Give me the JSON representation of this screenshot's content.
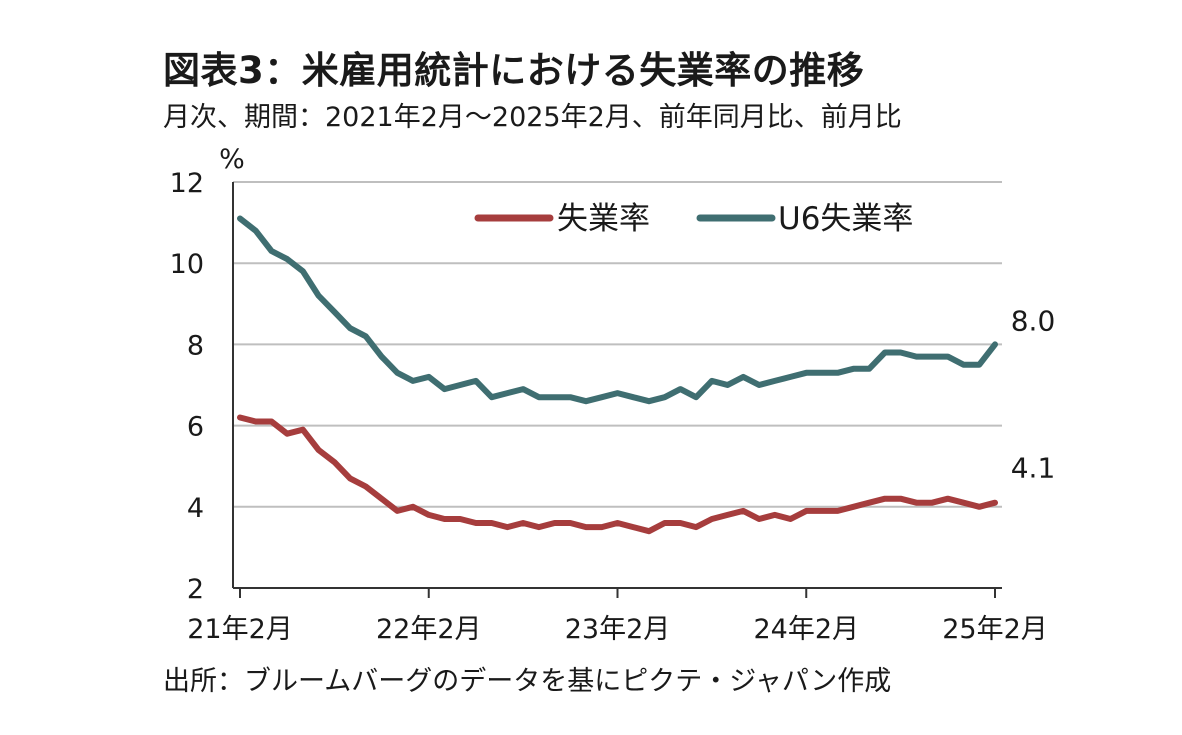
{
  "header": {
    "title": "図表3：米雇用統計における失業率の推移",
    "subtitle": "月次、期間：2021年2月～2025年2月、前年同月比、前月比"
  },
  "footer": {
    "source": "出所：ブルームバーグのデータを基にピクテ・ジャパン作成"
  },
  "colors": {
    "unemployment": "#a63d3d",
    "u6": "#3f6e71",
    "grid": "#bfbfbf",
    "axis": "#333333"
  },
  "chart_data": {
    "type": "line",
    "title": "",
    "xlabel": "",
    "ylabel": "%",
    "ylim": [
      2,
      12
    ],
    "yticks": [
      2,
      4,
      6,
      8,
      10,
      12
    ],
    "xtick_labels": [
      "21年2月",
      "22年2月",
      "23年2月",
      "24年2月",
      "25年2月"
    ],
    "xtick_index": [
      0,
      12,
      24,
      36,
      48
    ],
    "grid": true,
    "legend_position": "top-right",
    "x": [
      "2021-02",
      "2021-03",
      "2021-04",
      "2021-05",
      "2021-06",
      "2021-07",
      "2021-08",
      "2021-09",
      "2021-10",
      "2021-11",
      "2021-12",
      "2022-01",
      "2022-02",
      "2022-03",
      "2022-04",
      "2022-05",
      "2022-06",
      "2022-07",
      "2022-08",
      "2022-09",
      "2022-10",
      "2022-11",
      "2022-12",
      "2023-01",
      "2023-02",
      "2023-03",
      "2023-04",
      "2023-05",
      "2023-06",
      "2023-07",
      "2023-08",
      "2023-09",
      "2023-10",
      "2023-11",
      "2023-12",
      "2024-01",
      "2024-02",
      "2024-03",
      "2024-04",
      "2024-05",
      "2024-06",
      "2024-07",
      "2024-08",
      "2024-09",
      "2024-10",
      "2024-11",
      "2024-12",
      "2025-01",
      "2025-02"
    ],
    "series": [
      {
        "name": "失業率",
        "color": "#a63d3d",
        "end_label": "4.1",
        "values": [
          6.2,
          6.1,
          6.1,
          5.8,
          5.9,
          5.4,
          5.1,
          4.7,
          4.5,
          4.2,
          3.9,
          4.0,
          3.8,
          3.7,
          3.7,
          3.6,
          3.6,
          3.5,
          3.6,
          3.5,
          3.6,
          3.6,
          3.5,
          3.5,
          3.6,
          3.5,
          3.4,
          3.6,
          3.6,
          3.5,
          3.7,
          3.8,
          3.9,
          3.7,
          3.8,
          3.7,
          3.9,
          3.9,
          3.9,
          4.0,
          4.1,
          4.2,
          4.2,
          4.1,
          4.1,
          4.2,
          4.1,
          4.0,
          4.1
        ]
      },
      {
        "name": "U6失業率",
        "color": "#3f6e71",
        "end_label": "8.0",
        "values": [
          11.1,
          10.8,
          10.3,
          10.1,
          9.8,
          9.2,
          8.8,
          8.4,
          8.2,
          7.7,
          7.3,
          7.1,
          7.2,
          6.9,
          7.0,
          7.1,
          6.7,
          6.8,
          6.9,
          6.7,
          6.7,
          6.7,
          6.6,
          6.7,
          6.8,
          6.7,
          6.6,
          6.7,
          6.9,
          6.7,
          7.1,
          7.0,
          7.2,
          7.0,
          7.1,
          7.2,
          7.3,
          7.3,
          7.3,
          7.4,
          7.4,
          7.8,
          7.8,
          7.7,
          7.7,
          7.7,
          7.5,
          7.5,
          8.0
        ]
      }
    ]
  }
}
